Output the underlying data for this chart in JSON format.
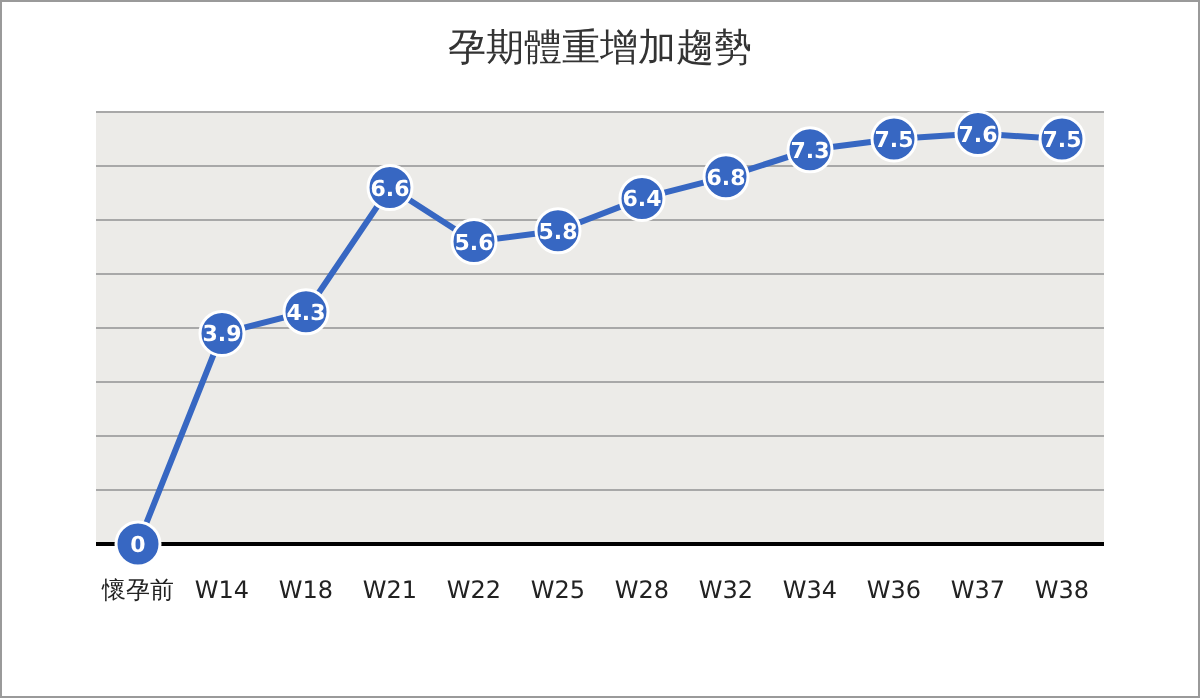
{
  "chart_data": {
    "type": "line",
    "title": "孕期體重增加趨勢",
    "categories": [
      "懷孕前",
      "W14",
      "W18",
      "W21",
      "W22",
      "W25",
      "W28",
      "W32",
      "W34",
      "W36",
      "W37",
      "W38"
    ],
    "series": [
      {
        "color": "#3767c2",
        "values": [
          0,
          3.9,
          4.3,
          6.6,
          5.6,
          5.8,
          6.4,
          6.8,
          7.3,
          7.5,
          7.6,
          7.5
        ]
      }
    ],
    "ylim": [
      0,
      8
    ],
    "yticks": [
      {
        "value": 0,
        "label": null
      },
      {
        "value": 1,
        "label": null
      },
      {
        "value": 2,
        "label": null
      },
      {
        "value": 3,
        "label": null
      },
      {
        "value": 4,
        "label": null
      },
      {
        "value": 5,
        "label": null
      },
      {
        "value": 6,
        "label": null
      },
      {
        "value": 7,
        "label": null
      },
      {
        "value": 8,
        "label": null
      }
    ],
    "grid": "y",
    "marker": "circle",
    "line_style": "solid",
    "data_labels": true,
    "tick_labels": "x"
  }
}
